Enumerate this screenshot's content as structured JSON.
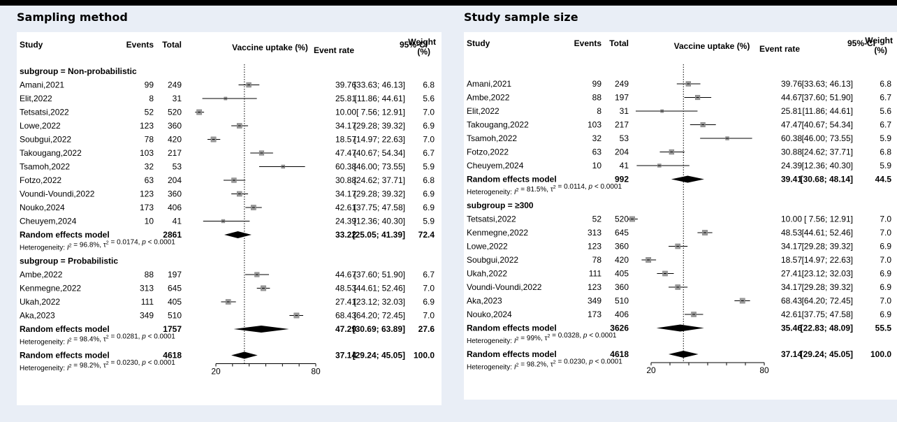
{
  "chart_data": [
    {
      "type": "forest",
      "title": "Sampling method",
      "headers": {
        "study": "Study",
        "events": "Events",
        "total": "Total",
        "axis": "Vaccine uptake (%)",
        "rate": "Event rate",
        "ci": "95%-CI",
        "weight": "Weight",
        "weight_unit": "(%)"
      },
      "axis": {
        "min": 20,
        "max": 80,
        "ticks": [
          "20",
          "80"
        ],
        "reference": 37.14
      },
      "groups": [
        {
          "label": "subgroup = Non-probabilistic",
          "studies": [
            {
              "study": "Amani,2021",
              "events": "99",
              "total": "249",
              "rate": 39.76,
              "lo": 33.63,
              "hi": 46.13,
              "rate_text": "39.76",
              "ci_text": "[33.63; 46.13]",
              "weight": "6.8"
            },
            {
              "study": "Elit,2022",
              "events": "8",
              "total": "31",
              "rate": 25.81,
              "lo": 11.86,
              "hi": 44.61,
              "rate_text": "25.81",
              "ci_text": "[11.86; 44.61]",
              "weight": "5.6"
            },
            {
              "study": "Tetsatsi,2022",
              "events": "52",
              "total": "520",
              "rate": 10.0,
              "lo": 7.56,
              "hi": 12.91,
              "rate_text": "10.00",
              "ci_text": "[ 7.56; 12.91]",
              "weight": "7.0"
            },
            {
              "study": "Lowe,2022",
              "events": "123",
              "total": "360",
              "rate": 34.17,
              "lo": 29.28,
              "hi": 39.32,
              "rate_text": "34.17",
              "ci_text": "[29.28; 39.32]",
              "weight": "6.9"
            },
            {
              "study": "Soubgui,2022",
              "events": "78",
              "total": "420",
              "rate": 18.57,
              "lo": 14.97,
              "hi": 22.63,
              "rate_text": "18.57",
              "ci_text": "[14.97; 22.63]",
              "weight": "7.0"
            },
            {
              "study": "Takougang,2022",
              "events": "103",
              "total": "217",
              "rate": 47.47,
              "lo": 40.67,
              "hi": 54.34,
              "rate_text": "47.47",
              "ci_text": "[40.67; 54.34]",
              "weight": "6.7"
            },
            {
              "study": "Tsamoh,2022",
              "events": "32",
              "total": "53",
              "rate": 60.38,
              "lo": 46.0,
              "hi": 73.55,
              "rate_text": "60.38",
              "ci_text": "[46.00; 73.55]",
              "weight": "5.9"
            },
            {
              "study": "Fotzo,2022",
              "events": "63",
              "total": "204",
              "rate": 30.88,
              "lo": 24.62,
              "hi": 37.71,
              "rate_text": "30.88",
              "ci_text": "[24.62; 37.71]",
              "weight": "6.8"
            },
            {
              "study": "Voundi-Voundi,2022",
              "events": "123",
              "total": "360",
              "rate": 34.17,
              "lo": 29.28,
              "hi": 39.32,
              "rate_text": "34.17",
              "ci_text": "[29.28; 39.32]",
              "weight": "6.9"
            },
            {
              "study": "Nouko,2024",
              "events": "173",
              "total": "406",
              "rate": 42.61,
              "lo": 37.75,
              "hi": 47.58,
              "rate_text": "42.61",
              "ci_text": "[37.75; 47.58]",
              "weight": "6.9"
            },
            {
              "study": "Cheuyem,2024",
              "events": "10",
              "total": "41",
              "rate": 24.39,
              "lo": 12.36,
              "hi": 40.3,
              "rate_text": "24.39",
              "ci_text": "[12.36; 40.30]",
              "weight": "5.9"
            }
          ],
          "model": {
            "label": "Random effects model",
            "total": "2861",
            "rate": 33.22,
            "lo": 25.05,
            "hi": 41.39,
            "rate_text": "33.22",
            "ci_text": "[25.05; 41.39]",
            "weight": "72.4"
          },
          "het": {
            "i2": "96.8%",
            "tau2": "0.0174",
            "p": "< 0.0001"
          }
        },
        {
          "label": "subgroup = Probabilistic",
          "studies": [
            {
              "study": "Ambe,2022",
              "events": "88",
              "total": "197",
              "rate": 44.67,
              "lo": 37.6,
              "hi": 51.9,
              "rate_text": "44.67",
              "ci_text": "[37.60; 51.90]",
              "weight": "6.7"
            },
            {
              "study": "Kenmegne,2022",
              "events": "313",
              "total": "645",
              "rate": 48.53,
              "lo": 44.61,
              "hi": 52.46,
              "rate_text": "48.53",
              "ci_text": "[44.61; 52.46]",
              "weight": "7.0"
            },
            {
              "study": "Ukah,2022",
              "events": "111",
              "total": "405",
              "rate": 27.41,
              "lo": 23.12,
              "hi": 32.03,
              "rate_text": "27.41",
              "ci_text": "[23.12; 32.03]",
              "weight": "6.9"
            },
            {
              "study": "Aka,2023",
              "events": "349",
              "total": "510",
              "rate": 68.43,
              "lo": 64.2,
              "hi": 72.45,
              "rate_text": "68.43",
              "ci_text": "[64.20; 72.45]",
              "weight": "7.0"
            }
          ],
          "model": {
            "label": "Random effects model",
            "total": "1757",
            "rate": 47.29,
            "lo": 30.69,
            "hi": 63.89,
            "rate_text": "47.29",
            "ci_text": "[30.69; 63.89]",
            "weight": "27.6"
          },
          "het": {
            "i2": "98.4%",
            "tau2": "0.0281",
            "p": "< 0.0001"
          }
        }
      ],
      "overall": {
        "label": "Random effects model",
        "total": "4618",
        "rate": 37.14,
        "lo": 29.24,
        "hi": 45.05,
        "rate_text": "37.14",
        "ci_text": "[29.24; 45.05]",
        "weight": "100.0",
        "het": {
          "i2": "98.2%",
          "tau2": "0.0230",
          "p": "< 0.0001"
        }
      }
    },
    {
      "type": "forest",
      "title": "Study sample size",
      "headers": {
        "study": "Study",
        "events": "Events",
        "total": "Total",
        "axis": "Vaccine uptake (%)",
        "rate": "Event rate",
        "ci": "95%-CI",
        "weight": "Weight",
        "weight_unit": "(%)"
      },
      "axis": {
        "min": 20,
        "max": 80,
        "ticks": [
          "20",
          "80"
        ],
        "reference": 37.14
      },
      "groups": [
        {
          "label": "",
          "studies": [
            {
              "study": "Amani,2021",
              "events": "99",
              "total": "249",
              "rate": 39.76,
              "lo": 33.63,
              "hi": 46.13,
              "rate_text": "39.76",
              "ci_text": "[33.63; 46.13]",
              "weight": "6.8"
            },
            {
              "study": "Ambe,2022",
              "events": "88",
              "total": "197",
              "rate": 44.67,
              "lo": 37.6,
              "hi": 51.9,
              "rate_text": "44.67",
              "ci_text": "[37.60; 51.90]",
              "weight": "6.7"
            },
            {
              "study": "Elit,2022",
              "events": "8",
              "total": "31",
              "rate": 25.81,
              "lo": 11.86,
              "hi": 44.61,
              "rate_text": "25.81",
              "ci_text": "[11.86; 44.61]",
              "weight": "5.6"
            },
            {
              "study": "Takougang,2022",
              "events": "103",
              "total": "217",
              "rate": 47.47,
              "lo": 40.67,
              "hi": 54.34,
              "rate_text": "47.47",
              "ci_text": "[40.67; 54.34]",
              "weight": "6.7"
            },
            {
              "study": "Tsamoh,2022",
              "events": "32",
              "total": "53",
              "rate": 60.38,
              "lo": 46.0,
              "hi": 73.55,
              "rate_text": "60.38",
              "ci_text": "[46.00; 73.55]",
              "weight": "5.9"
            },
            {
              "study": "Fotzo,2022",
              "events": "63",
              "total": "204",
              "rate": 30.88,
              "lo": 24.62,
              "hi": 37.71,
              "rate_text": "30.88",
              "ci_text": "[24.62; 37.71]",
              "weight": "6.8"
            },
            {
              "study": "Cheuyem,2024",
              "events": "10",
              "total": "41",
              "rate": 24.39,
              "lo": 12.36,
              "hi": 40.3,
              "rate_text": "24.39",
              "ci_text": "[12.36; 40.30]",
              "weight": "5.9"
            }
          ],
          "model": {
            "label": "Random effects model",
            "total": "992",
            "rate": 39.41,
            "lo": 30.68,
            "hi": 48.14,
            "rate_text": "39.41",
            "ci_text": "[30.68; 48.14]",
            "weight": "44.5"
          },
          "het": {
            "i2": "81.5%",
            "tau2": "0.0114",
            "p": "< 0.0001"
          }
        },
        {
          "label": "subgroup = ≥300",
          "studies": [
            {
              "study": "Tetsatsi,2022",
              "events": "52",
              "total": "520",
              "rate": 10.0,
              "lo": 7.56,
              "hi": 12.91,
              "rate_text": "10.00",
              "ci_text": "[ 7.56; 12.91]",
              "weight": "7.0"
            },
            {
              "study": "Kenmegne,2022",
              "events": "313",
              "total": "645",
              "rate": 48.53,
              "lo": 44.61,
              "hi": 52.46,
              "rate_text": "48.53",
              "ci_text": "[44.61; 52.46]",
              "weight": "7.0"
            },
            {
              "study": "Lowe,2022",
              "events": "123",
              "total": "360",
              "rate": 34.17,
              "lo": 29.28,
              "hi": 39.32,
              "rate_text": "34.17",
              "ci_text": "[29.28; 39.32]",
              "weight": "6.9"
            },
            {
              "study": "Soubgui,2022",
              "events": "78",
              "total": "420",
              "rate": 18.57,
              "lo": 14.97,
              "hi": 22.63,
              "rate_text": "18.57",
              "ci_text": "[14.97; 22.63]",
              "weight": "7.0"
            },
            {
              "study": "Ukah,2022",
              "events": "111",
              "total": "405",
              "rate": 27.41,
              "lo": 23.12,
              "hi": 32.03,
              "rate_text": "27.41",
              "ci_text": "[23.12; 32.03]",
              "weight": "6.9"
            },
            {
              "study": "Voundi-Voundi,2022",
              "events": "123",
              "total": "360",
              "rate": 34.17,
              "lo": 29.28,
              "hi": 39.32,
              "rate_text": "34.17",
              "ci_text": "[29.28; 39.32]",
              "weight": "6.9"
            },
            {
              "study": "Aka,2023",
              "events": "349",
              "total": "510",
              "rate": 68.43,
              "lo": 64.2,
              "hi": 72.45,
              "rate_text": "68.43",
              "ci_text": "[64.20; 72.45]",
              "weight": "7.0"
            },
            {
              "study": "Nouko,2024",
              "events": "173",
              "total": "406",
              "rate": 42.61,
              "lo": 37.75,
              "hi": 47.58,
              "rate_text": "42.61",
              "ci_text": "[37.75; 47.58]",
              "weight": "6.9"
            }
          ],
          "model": {
            "label": "Random effects model",
            "total": "3626",
            "rate": 35.46,
            "lo": 22.83,
            "hi": 48.09,
            "rate_text": "35.46",
            "ci_text": "[22.83; 48.09]",
            "weight": "55.5"
          },
          "het": {
            "i2": "99%",
            "tau2": "0.0328",
            "p": "< 0.0001"
          }
        }
      ],
      "overall": {
        "label": "Random effects model",
        "total": "4618",
        "rate": 37.14,
        "lo": 29.24,
        "hi": 45.05,
        "rate_text": "37.14",
        "ci_text": "[29.24; 45.05]",
        "weight": "100.0",
        "het": {
          "i2": "98.2%",
          "tau2": "0.0230",
          "p": "< 0.0001"
        }
      }
    }
  ]
}
